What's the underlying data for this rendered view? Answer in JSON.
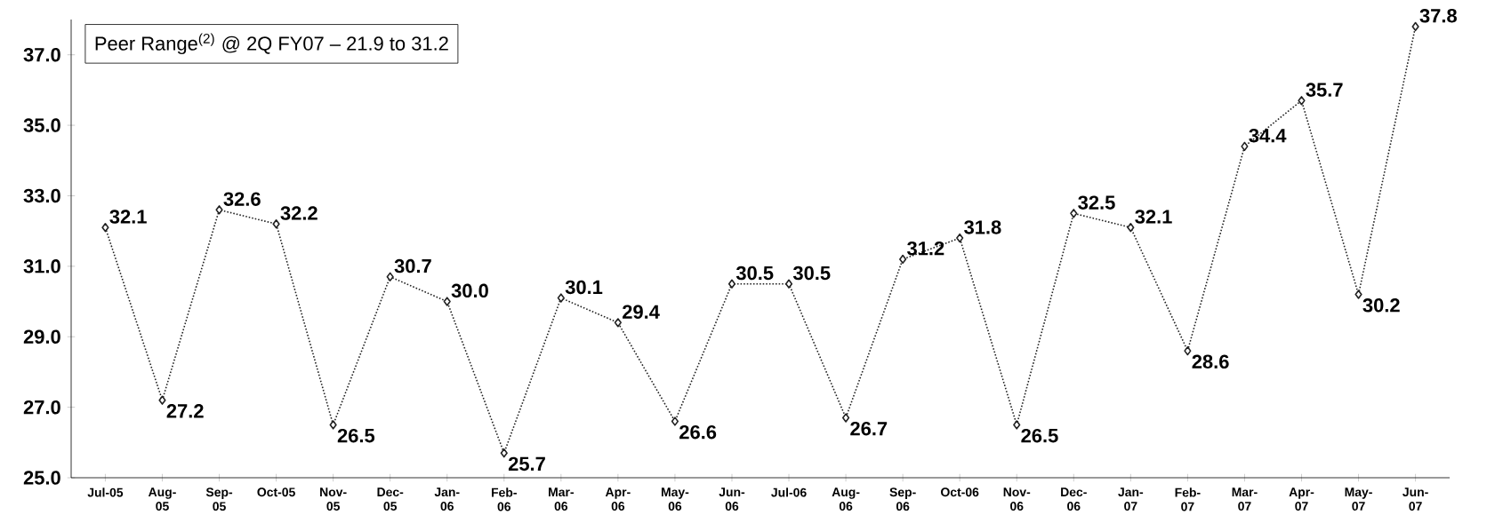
{
  "chart_data": {
    "type": "line",
    "categories": [
      "Jul-05",
      "Aug-05",
      "Sep-05",
      "Oct-05",
      "Nov-05",
      "Dec-05",
      "Jan-06",
      "Feb-06",
      "Mar-06",
      "Apr-06",
      "May-06",
      "Jun-06",
      "Jul-06",
      "Aug-06",
      "Sep-06",
      "Oct-06",
      "Nov-06",
      "Dec-06",
      "Jan-07",
      "Feb-07",
      "Mar-07",
      "Apr-07",
      "May-07",
      "Jun-07"
    ],
    "values": [
      32.1,
      27.2,
      32.6,
      32.2,
      26.5,
      30.7,
      30.0,
      25.7,
      30.1,
      29.4,
      26.6,
      30.5,
      30.5,
      26.7,
      31.2,
      31.8,
      26.5,
      32.5,
      32.1,
      28.6,
      34.4,
      35.7,
      30.2,
      37.8
    ],
    "value_labels": [
      "32.1",
      "27.2",
      "32.6",
      "32.2",
      "26.5",
      "30.7",
      "30.0",
      "25.7",
      "30.1",
      "29.4",
      "26.6",
      "30.5",
      "30.5",
      "26.7",
      "31.2",
      "31.8",
      "26.5",
      "32.5",
      "32.1",
      "28.6",
      "34.4",
      "35.7",
      "30.2",
      "37.8"
    ],
    "color": "#222222",
    "marker": "diamond",
    "line_style": "dotted",
    "ylim": [
      25,
      38
    ],
    "yticks": [
      {
        "value": 25,
        "label": "25.0"
      },
      {
        "value": 27,
        "label": "27.0"
      },
      {
        "value": 29,
        "label": "29.0"
      },
      {
        "value": 31,
        "label": "31.0"
      },
      {
        "value": 33,
        "label": "33.0"
      },
      {
        "value": 35,
        "label": "35.0"
      },
      {
        "value": 37,
        "label": "37.0"
      }
    ],
    "annotations": [
      "Peer Range$^{(2)}$ @ 2Q FY07 – 21.9 to 31.2"
    ],
    "grid": false
  }
}
